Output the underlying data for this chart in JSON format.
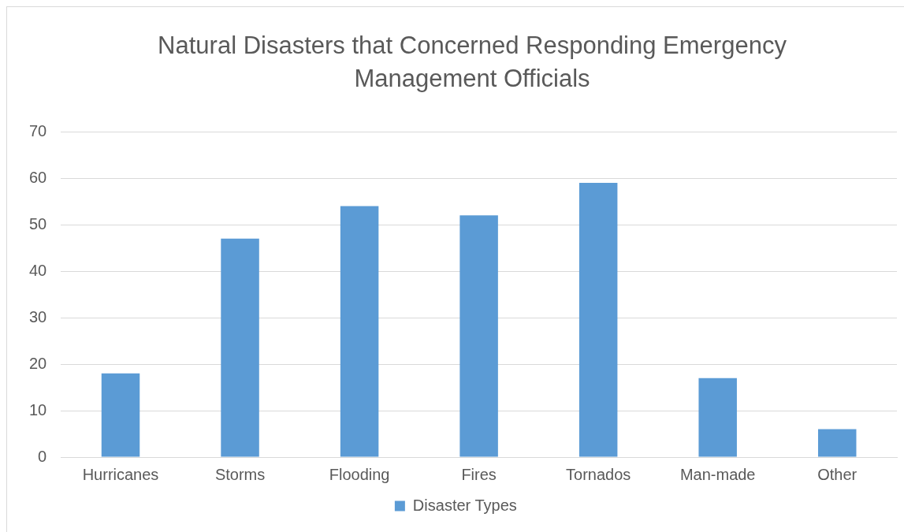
{
  "chart_data": {
    "type": "bar",
    "title": "Natural Disasters that Concerned Responding Emergency Management Officials",
    "categories": [
      "Hurricanes",
      "Storms",
      "Flooding",
      "Fires",
      "Tornados",
      "Man-made",
      "Other"
    ],
    "series": [
      {
        "name": "Disaster Types",
        "color": "#5b9bd5",
        "values": [
          18,
          47,
          54,
          52,
          59,
          17,
          6
        ]
      }
    ],
    "ylim": [
      0,
      70
    ],
    "yticks": [
      0,
      10,
      20,
      30,
      40,
      50,
      60,
      70
    ],
    "grid": "y",
    "legend": "bottom"
  }
}
